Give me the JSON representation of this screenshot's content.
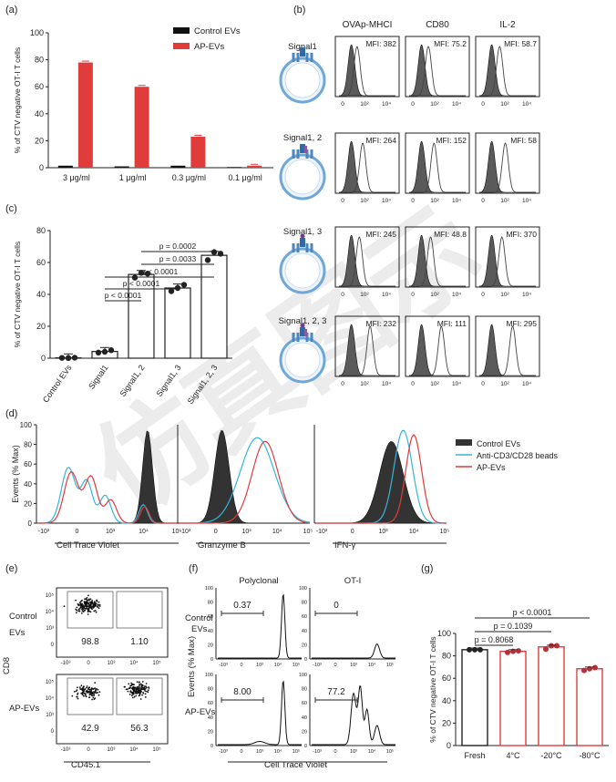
{
  "watermark": "仿真图示",
  "panel_labels": {
    "a": "(a)",
    "b": "(b)",
    "c": "(c)",
    "d": "(d)",
    "e": "(e)",
    "f": "(f)",
    "g": "(g)"
  },
  "colors": {
    "control": "#111111",
    "ap": "#e03c3c",
    "beads": "#36b4dc",
    "membrane": "#6fa8d8",
    "gray": "#5a5a5a"
  },
  "chart_data": [
    {
      "id": "a",
      "type": "bar",
      "ylabel": "% of CTV negative OT-I T cells",
      "ylim": [
        0,
        100
      ],
      "yticks": [
        0,
        20,
        40,
        60,
        80,
        100
      ],
      "categories": [
        "3 μg/ml",
        "1 μg/ml",
        "0.3 μg/ml",
        "0.1 μg/ml"
      ],
      "series": [
        {
          "name": "Control EVs",
          "values": [
            1.5,
            1.0,
            1.5,
            0.5
          ]
        },
        {
          "name": "AP-EVs",
          "values": [
            78,
            60,
            23,
            1.5
          ]
        }
      ]
    },
    {
      "id": "c",
      "type": "bar",
      "ylabel": "% of CTV negative OT-I T cells",
      "ylim": [
        0,
        80
      ],
      "yticks": [
        0,
        20,
        40,
        60,
        80
      ],
      "categories": [
        "Control EVs",
        "Signal1",
        "Signal1, 2",
        "Signal1, 3",
        "Signal1, 2, 3"
      ],
      "values": [
        0.2,
        4.2,
        52.5,
        44,
        64.5
      ],
      "points": [
        [
          0.2,
          0.1,
          0.3
        ],
        [
          3.5,
          4.0,
          5.0
        ],
        [
          50.5,
          53.5,
          53.0
        ],
        [
          42,
          44,
          46
        ],
        [
          61.5,
          66.5,
          65.5
        ]
      ],
      "comparisons": [
        "p < 0.0001",
        "p < 0.0001",
        "p < 0.0001",
        "p = 0.0033",
        "p = 0.0002"
      ]
    },
    {
      "id": "b",
      "type": "histogram-grid",
      "columns": [
        "OVAp-MHCI",
        "CD80",
        "IL-2"
      ],
      "rows": [
        "Signal1",
        "Signal1, 2",
        "Signal1, 3",
        "Signal1, 2, 3"
      ],
      "mfi": [
        [
          "MFI: 382",
          "MFI: 75.2",
          "MFI: 58.7"
        ],
        [
          "MFI: 264",
          "MFI: 152",
          "MFI: 58"
        ],
        [
          "MFI: 245",
          "MFI: 48.8",
          "MFI: 370"
        ],
        [
          "MFI: 232",
          "MFI: 111",
          "MFI: 295"
        ]
      ],
      "tick_labels": [
        "0",
        "10²",
        "10⁴"
      ]
    },
    {
      "id": "d",
      "type": "histogram",
      "ylabel": "Events (% Max)",
      "yticks": [
        "0",
        "20",
        "40",
        "60",
        "80",
        "100"
      ],
      "xlabels": [
        "Cell Trace Violet",
        "Granzyme B",
        "IFN-γ"
      ],
      "xticks": [
        [
          "-10³",
          "0",
          "10³",
          "10⁴",
          "10⁵"
        ],
        [
          "-10³",
          "0",
          "10³",
          "10⁴",
          "10⁵"
        ],
        [
          "-10³",
          "0",
          "10³",
          "10⁴",
          "10⁵"
        ]
      ],
      "legend": [
        "Control EVs",
        "Anti-CD3/CD28 beads",
        "AP-EVs"
      ]
    },
    {
      "id": "e",
      "type": "scatter-gates",
      "ylabel": "CD8",
      "xlabel": "CD45.1",
      "rows": [
        "Control EVs",
        "AP-EVs"
      ],
      "gates": [
        [
          "98.8",
          "1.10"
        ],
        [
          "42.9",
          "56.3"
        ]
      ],
      "yticks": [
        "10⁵",
        "10⁴",
        "10³",
        "0"
      ],
      "xticks": [
        "-10³",
        "0",
        "10³",
        "10⁴",
        "10⁵"
      ]
    },
    {
      "id": "f",
      "type": "histogram",
      "ylabel": "Events (% Max)",
      "xlabel": "Cell Trace Violet",
      "columns": [
        "Polyclonal",
        "OT-I"
      ],
      "rows": [
        "Control EVs",
        "AP-EVs"
      ],
      "gates": [
        [
          "0.37",
          "0"
        ],
        [
          "8.00",
          "77.2"
        ]
      ],
      "yticks": [
        "0",
        "20",
        "40",
        "60",
        "80",
        "100"
      ],
      "xticks": [
        "-10³",
        "0",
        "10³",
        "10⁴",
        "10⁵"
      ]
    },
    {
      "id": "g",
      "type": "bar",
      "ylabel": "% of CTV negative OT-I T cells",
      "ylim": [
        0,
        100
      ],
      "yticks": [
        0,
        20,
        40,
        60,
        80,
        100
      ],
      "categories": [
        "Fresh",
        "4°C",
        "-20°C",
        "-80°C"
      ],
      "values": [
        85.5,
        84,
        88,
        68.5
      ],
      "points": [
        [
          85.5,
          85.5,
          85.5
        ],
        [
          83,
          84,
          84.5
        ],
        [
          86,
          89,
          89
        ],
        [
          67,
          68.5,
          69.5
        ]
      ],
      "comparisons": [
        "p = 0.8068",
        "p = 0.1039",
        "p < 0.0001"
      ]
    }
  ]
}
